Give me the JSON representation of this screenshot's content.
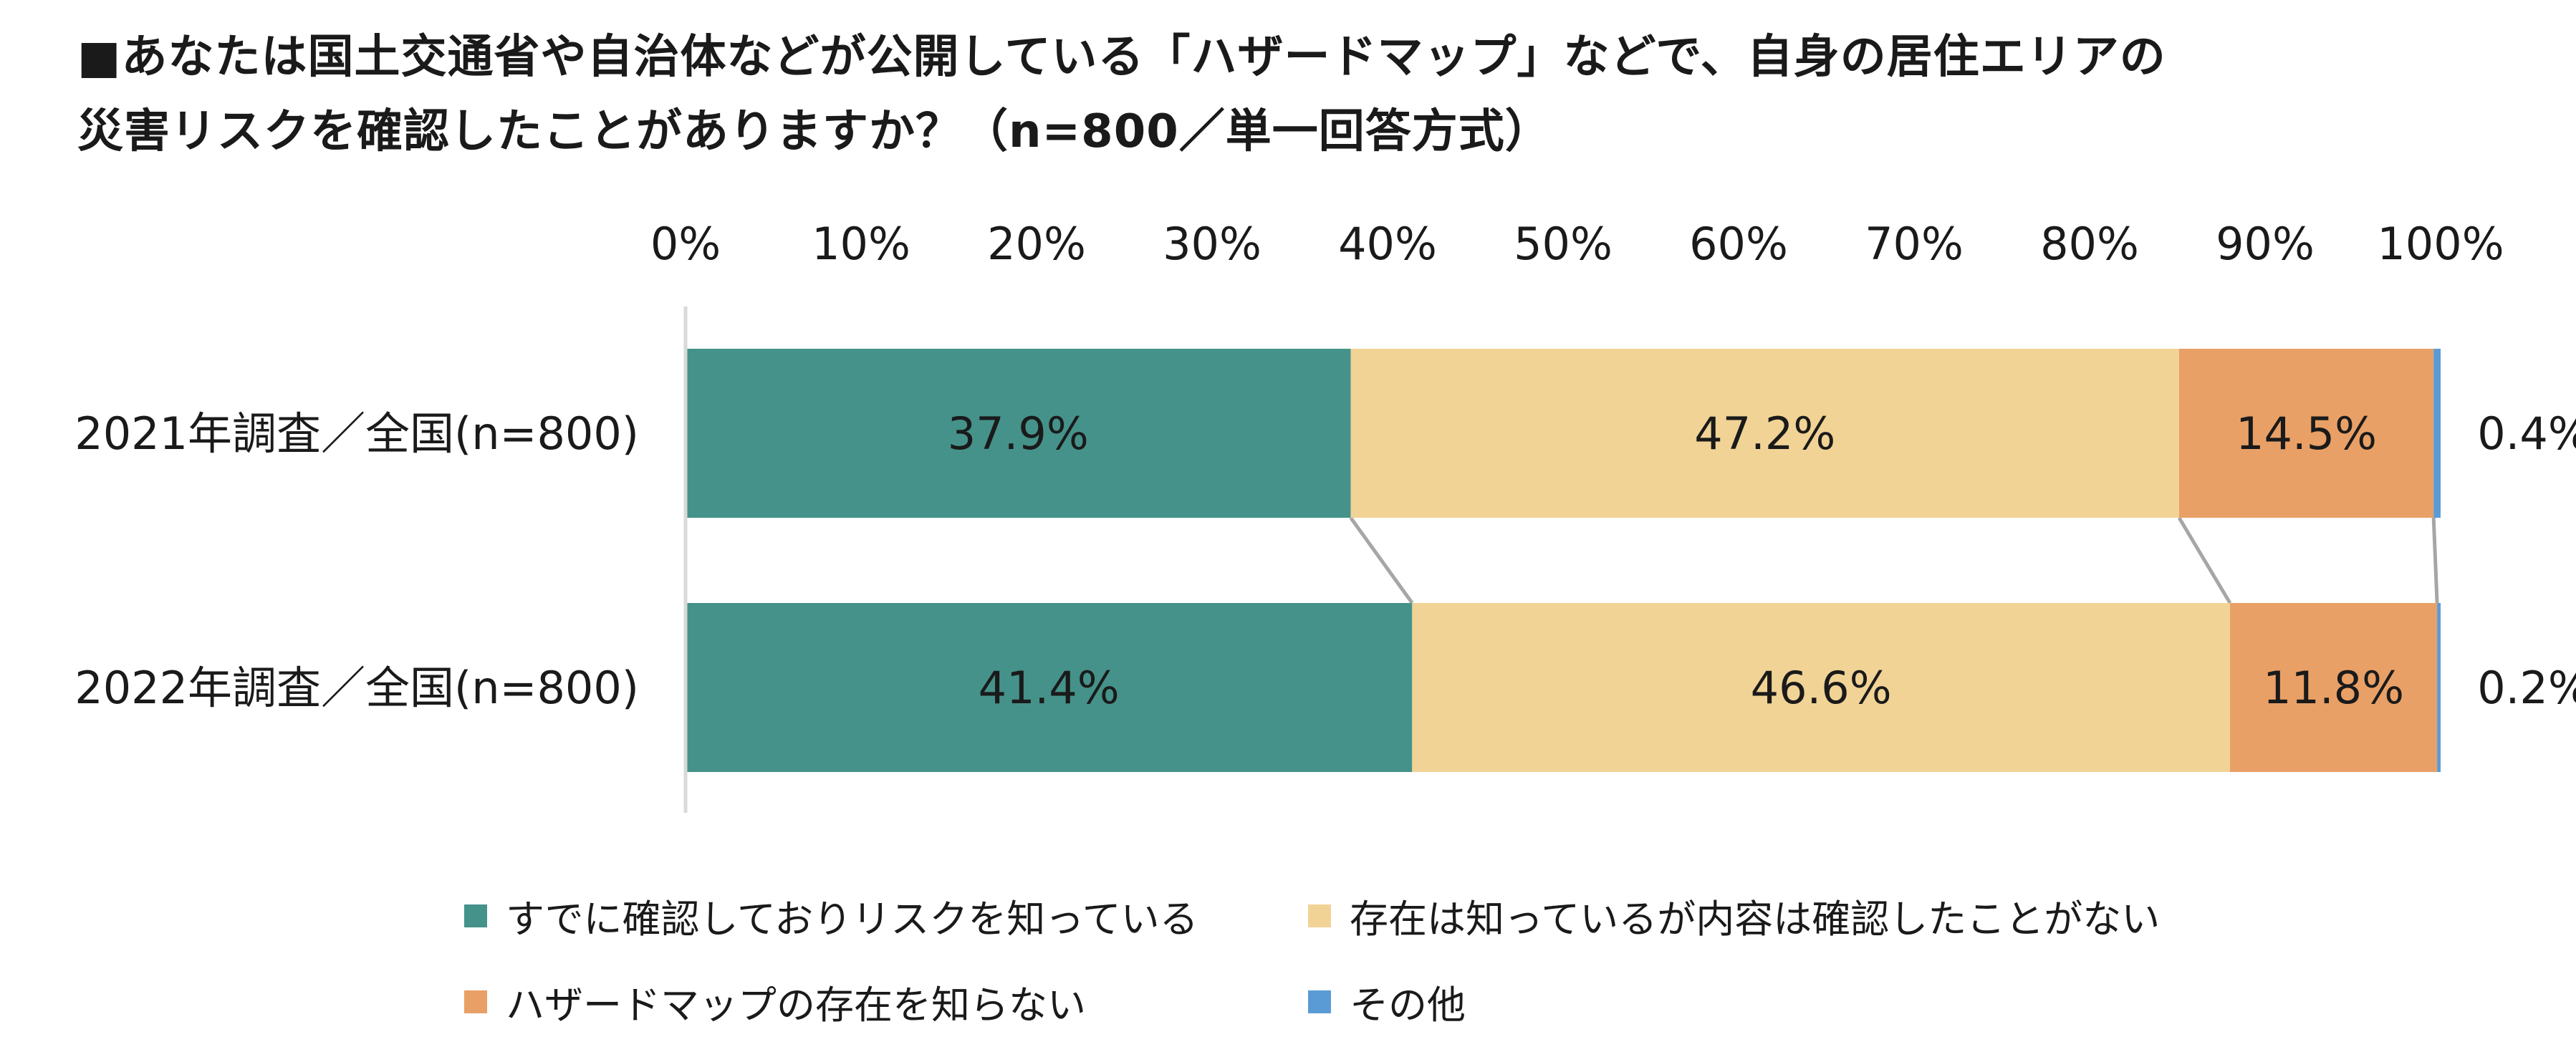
{
  "title": {
    "line1": "■あなたは国土交通省や自治体などが公開している「ハザードマップ」などで、自身の居住エリアの",
    "line2": "災害リスクを確認したことがありますか？（n=800／単一回答方式）"
  },
  "chart_data": {
    "type": "bar",
    "orientation": "horizontal",
    "stacked": "100%",
    "title": "■あなたは国土交通省や自治体などが公開している「ハザードマップ」などで、自身の居住エリアの災害リスクを確認したことがありますか？（n=800／単一回答方式）",
    "categories": [
      "2021年調査／全国(n=800)",
      "2022年調査／全国(n=800)"
    ],
    "series": [
      {
        "name": "すでに確認しておりリスクを知っている",
        "color": "#45928A",
        "values": [
          37.9,
          41.4
        ],
        "labels": [
          "37.9%",
          "41.4%"
        ]
      },
      {
        "name": "存在は知っているが内容は確認したことがない",
        "color": "#F2D396",
        "values": [
          47.2,
          46.6
        ],
        "labels": [
          "47.2%",
          "46.6%"
        ]
      },
      {
        "name": "ハザードマップの存在を知らない",
        "color": "#E9A066",
        "values": [
          14.5,
          11.8
        ],
        "labels": [
          "14.5%",
          "11.8%"
        ]
      },
      {
        "name": "その他",
        "color": "#5B9BD5",
        "values": [
          0.4,
          0.2
        ],
        "labels": [
          "0.4%",
          "0.2%"
        ]
      }
    ],
    "x_ticks": [
      "0%",
      "10%",
      "20%",
      "30%",
      "40%",
      "50%",
      "60%",
      "70%",
      "80%",
      "90%",
      "100%"
    ],
    "xlim": [
      0,
      100
    ],
    "axis_position": "top",
    "series_lines": true,
    "grid": false,
    "legend_position": "bottom"
  }
}
